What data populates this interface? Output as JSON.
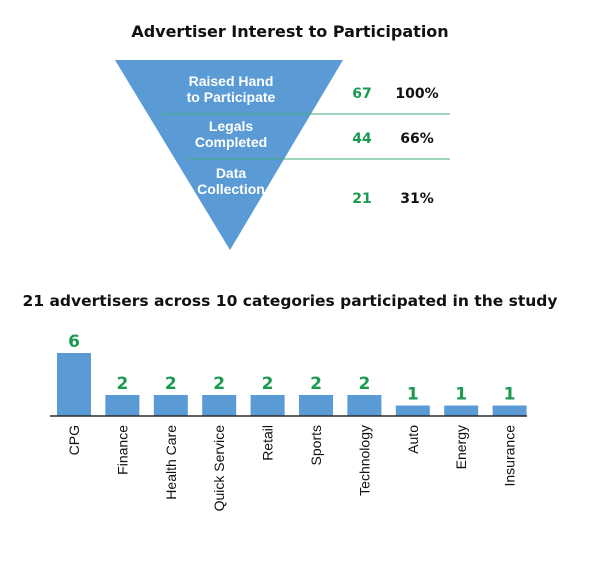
{
  "colors": {
    "funnel_fill": "#5B9BD5",
    "bar_fill": "#5B9BD5",
    "divider": "#3FAE7A",
    "count_green": "#1A9A50",
    "value_green": "#1A9A50",
    "axis_line": "#2b2b2b"
  },
  "funnel": {
    "title": "Advertiser Interest to Participation",
    "stages": [
      {
        "label_lines": [
          "Raised Hand",
          "to Participate"
        ],
        "count": "67",
        "percent": "100%"
      },
      {
        "label_lines": [
          "Legals",
          "Completed"
        ],
        "count": "44",
        "percent": "66%"
      },
      {
        "label_lines": [
          "Data",
          "Collection"
        ],
        "count": "21",
        "percent": "31%"
      }
    ]
  },
  "chart_data": {
    "type": "bar",
    "title": "21 advertisers across 10 categories participated in the study",
    "xlabel": "",
    "ylabel": "",
    "categories": [
      "CPG",
      "Finance",
      "Health Care",
      "Quick Service",
      "Retail",
      "Sports",
      "Technology",
      "Auto",
      "Energy",
      "Insurance"
    ],
    "values": [
      6,
      2,
      2,
      2,
      2,
      2,
      2,
      1,
      1,
      1
    ],
    "ylim": [
      0,
      6
    ],
    "grid": false,
    "data_labels": true
  }
}
